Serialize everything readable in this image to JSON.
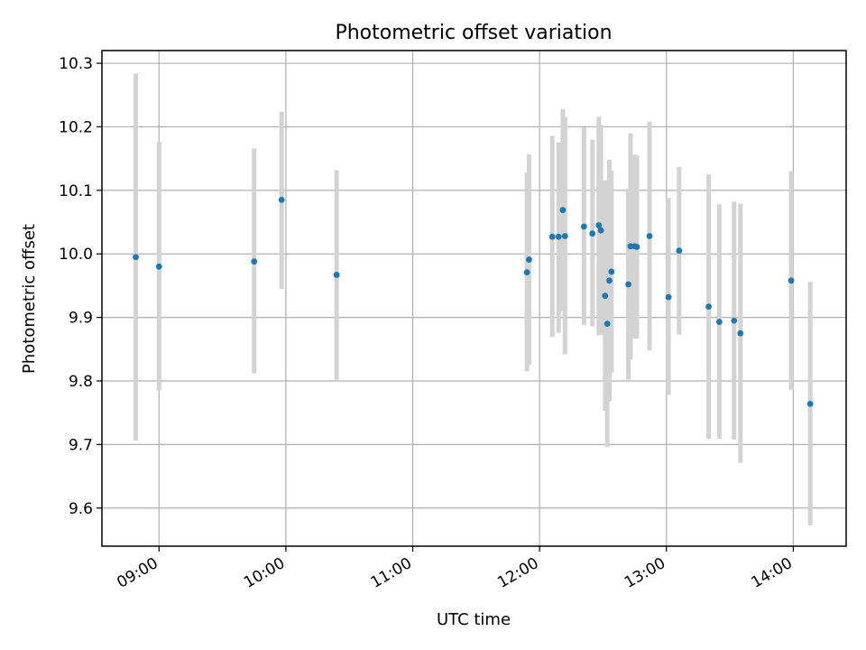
{
  "chart_data": {
    "type": "scatter",
    "title": "Photometric offset variation",
    "xlabel": "UTC time",
    "ylabel": "Photometric offset",
    "x_axis": {
      "kind": "time",
      "range": [
        "08:33",
        "14:25"
      ],
      "tick_labels": [
        "09:00",
        "10:00",
        "11:00",
        "12:00",
        "13:00",
        "14:00"
      ]
    },
    "y_axis": {
      "range": [
        9.54,
        10.32
      ],
      "ticks": [
        9.6,
        9.7,
        9.8,
        9.9,
        10.0,
        10.1,
        10.2,
        10.3
      ],
      "tick_labels": [
        "9.6",
        "9.7",
        "9.8",
        "9.9",
        "10.0",
        "10.1",
        "10.2",
        "10.3"
      ]
    },
    "grid": true,
    "legend": "none",
    "colors": {
      "point": "#1f77b4",
      "errorbar": "#d3d3d3",
      "grid": "#b0b0b0"
    },
    "points": [
      {
        "x": "08:49",
        "y": 9.995,
        "y_low": 9.706,
        "y_high": 10.284
      },
      {
        "x": "09:00",
        "y": 9.98,
        "y_low": 9.785,
        "y_high": 10.176
      },
      {
        "x": "09:45",
        "y": 9.988,
        "y_low": 9.812,
        "y_high": 10.166
      },
      {
        "x": "09:58",
        "y": 10.085,
        "y_low": 9.945,
        "y_high": 10.224
      },
      {
        "x": "10:24",
        "y": 9.967,
        "y_low": 9.802,
        "y_high": 10.132
      },
      {
        "x": "11:54",
        "y": 9.971,
        "y_low": 9.815,
        "y_high": 10.128
      },
      {
        "x": "11:55",
        "y": 9.991,
        "y_low": 9.825,
        "y_high": 10.157
      },
      {
        "x": "12:06",
        "y": 10.027,
        "y_low": 9.869,
        "y_high": 10.186
      },
      {
        "x": "12:09",
        "y": 10.027,
        "y_low": 9.876,
        "y_high": 10.175
      },
      {
        "x": "12:11",
        "y": 10.069,
        "y_low": 9.91,
        "y_high": 10.228
      },
      {
        "x": "12:12",
        "y": 10.028,
        "y_low": 9.842,
        "y_high": 10.215
      },
      {
        "x": "12:21",
        "y": 10.043,
        "y_low": 9.888,
        "y_high": 10.199
      },
      {
        "x": "12:25",
        "y": 10.032,
        "y_low": 9.886,
        "y_high": 10.18
      },
      {
        "x": "12:28",
        "y": 10.045,
        "y_low": 9.872,
        "y_high": 10.216
      },
      {
        "x": "12:29",
        "y": 10.037,
        "y_low": 9.872,
        "y_high": 10.203
      },
      {
        "x": "12:31",
        "y": 9.934,
        "y_low": 9.753,
        "y_high": 10.116
      },
      {
        "x": "12:32",
        "y": 9.89,
        "y_low": 9.696,
        "y_high": 10.085
      },
      {
        "x": "12:33",
        "y": 9.958,
        "y_low": 9.768,
        "y_high": 10.148
      },
      {
        "x": "12:34",
        "y": 9.972,
        "y_low": 9.813,
        "y_high": 10.131
      },
      {
        "x": "12:42",
        "y": 9.952,
        "y_low": 9.802,
        "y_high": 10.103
      },
      {
        "x": "12:43",
        "y": 10.012,
        "y_low": 9.834,
        "y_high": 10.19
      },
      {
        "x": "12:45",
        "y": 10.012,
        "y_low": 9.867,
        "y_high": 10.156
      },
      {
        "x": "12:46",
        "y": 10.011,
        "y_low": 9.867,
        "y_high": 10.155
      },
      {
        "x": "12:52",
        "y": 10.028,
        "y_low": 9.848,
        "y_high": 10.208
      },
      {
        "x": "13:01",
        "y": 9.932,
        "y_low": 9.778,
        "y_high": 10.088
      },
      {
        "x": "13:06",
        "y": 10.005,
        "y_low": 9.873,
        "y_high": 10.137
      },
      {
        "x": "13:20",
        "y": 9.917,
        "y_low": 9.709,
        "y_high": 10.125
      },
      {
        "x": "13:25",
        "y": 9.893,
        "y_low": 9.709,
        "y_high": 10.078
      },
      {
        "x": "13:32",
        "y": 9.895,
        "y_low": 9.708,
        "y_high": 10.082
      },
      {
        "x": "13:35",
        "y": 9.875,
        "y_low": 9.671,
        "y_high": 10.079
      },
      {
        "x": "13:59",
        "y": 9.958,
        "y_low": 9.786,
        "y_high": 10.13
      },
      {
        "x": "14:08",
        "y": 9.764,
        "y_low": 9.573,
        "y_high": 9.956
      }
    ]
  }
}
